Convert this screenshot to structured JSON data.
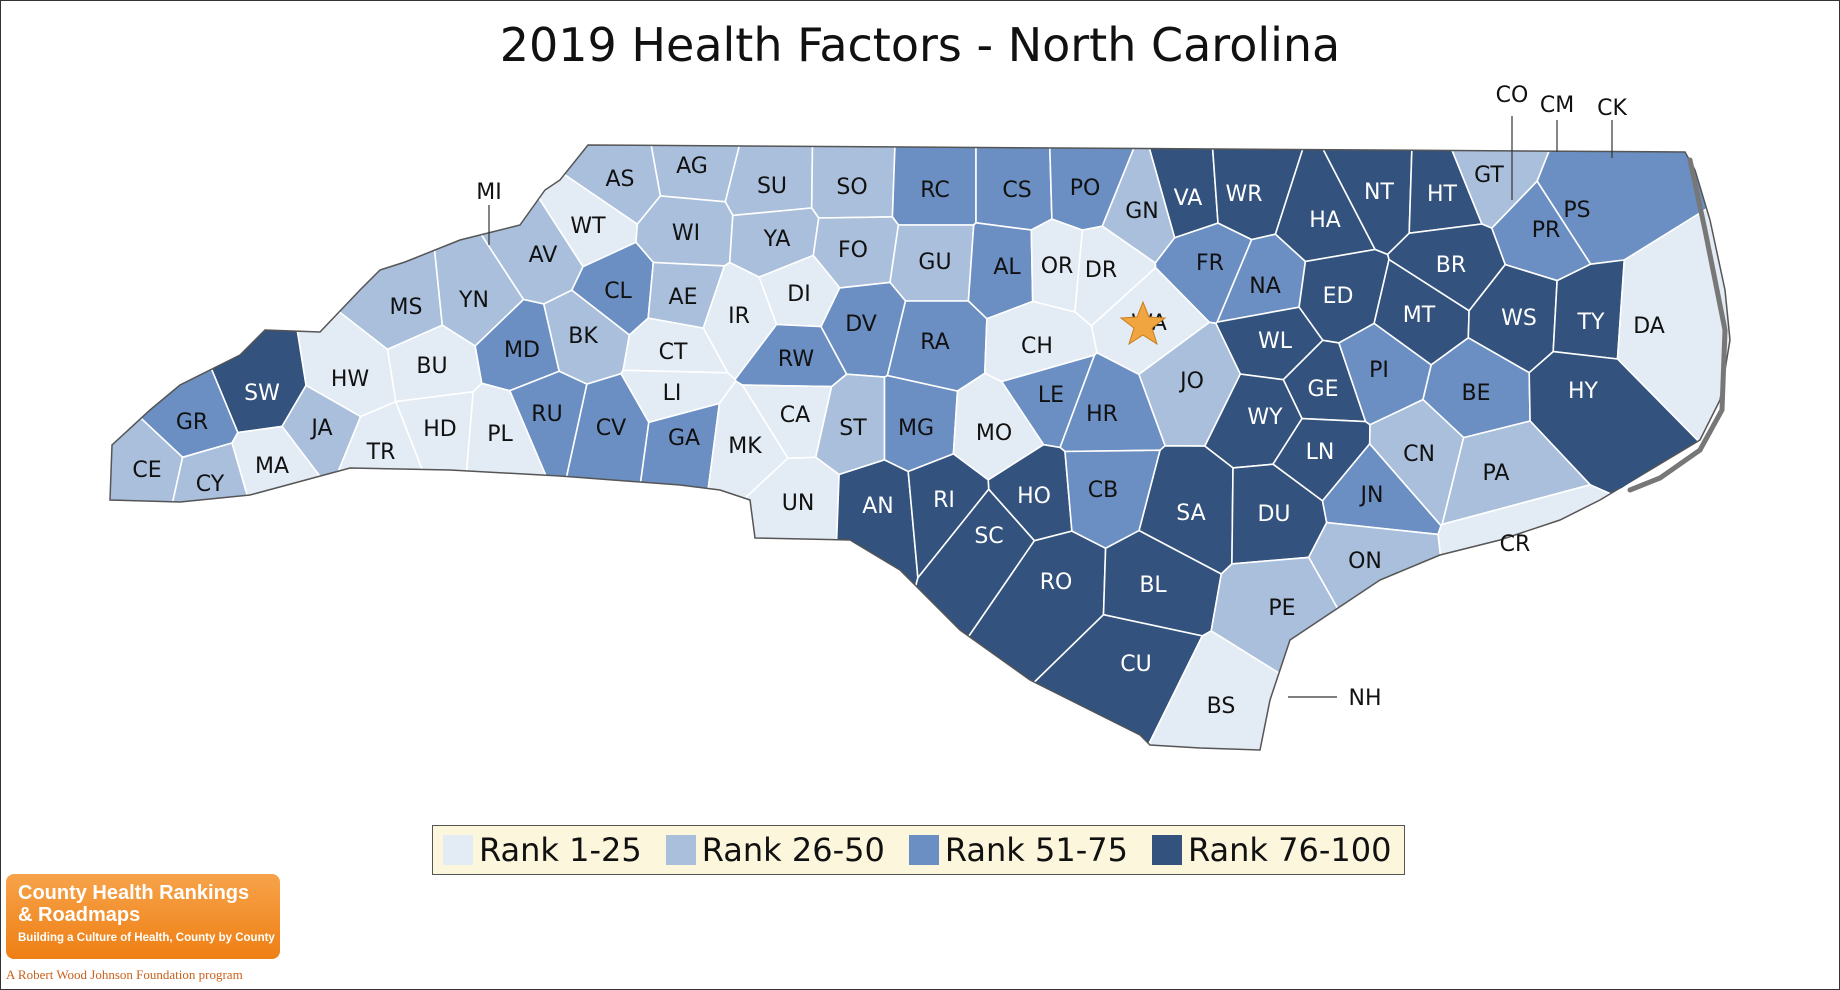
{
  "title": "2019 Health Factors - North Carolina",
  "colors": {
    "rank_1_25": "#e3ebf5",
    "rank_26_50": "#a9bfdc",
    "rank_51_75": "#6b8fc2",
    "rank_76_100": "#33527d"
  },
  "legend": [
    {
      "label": "Rank 1-25",
      "class": "q1"
    },
    {
      "label": "Rank 26-50",
      "class": "q2"
    },
    {
      "label": "Rank 51-75",
      "class": "q3"
    },
    {
      "label": "Rank 76-100",
      "class": "q4"
    }
  ],
  "marker": "star-icon",
  "counties": [
    {
      "code": "AS",
      "class": "q2"
    },
    {
      "code": "AG",
      "class": "q2"
    },
    {
      "code": "SU",
      "class": "q2"
    },
    {
      "code": "SO",
      "class": "q2"
    },
    {
      "code": "RC",
      "class": "q3"
    },
    {
      "code": "CS",
      "class": "q3"
    },
    {
      "code": "PO",
      "class": "q3"
    },
    {
      "code": "GN",
      "class": "q2"
    },
    {
      "code": "VA",
      "class": "q4"
    },
    {
      "code": "WR",
      "class": "q4"
    },
    {
      "code": "HA",
      "class": "q4"
    },
    {
      "code": "NT",
      "class": "q4"
    },
    {
      "code": "HT",
      "class": "q4"
    },
    {
      "code": "GT",
      "class": "q2"
    },
    {
      "code": "PS",
      "class": "q3"
    },
    {
      "code": "PR",
      "class": "q3"
    },
    {
      "code": "WT",
      "class": "q1"
    },
    {
      "code": "WI",
      "class": "q2"
    },
    {
      "code": "YA",
      "class": "q2"
    },
    {
      "code": "FO",
      "class": "q2"
    },
    {
      "code": "GU",
      "class": "q2"
    },
    {
      "code": "AL",
      "class": "q3"
    },
    {
      "code": "OR",
      "class": "q1"
    },
    {
      "code": "DR",
      "class": "q1"
    },
    {
      "code": "FR",
      "class": "q3"
    },
    {
      "code": "BR",
      "class": "q4"
    },
    {
      "code": "AV",
      "class": "q2"
    },
    {
      "code": "CL",
      "class": "q3"
    },
    {
      "code": "AE",
      "class": "q2"
    },
    {
      "code": "DI",
      "class": "q1"
    },
    {
      "code": "DV",
      "class": "q3"
    },
    {
      "code": "RA",
      "class": "q3"
    },
    {
      "code": "WA",
      "class": "q1"
    },
    {
      "code": "NA",
      "class": "q3"
    },
    {
      "code": "ED",
      "class": "q4"
    },
    {
      "code": "MT",
      "class": "q4"
    },
    {
      "code": "WS",
      "class": "q4"
    },
    {
      "code": "TY",
      "class": "q4"
    },
    {
      "code": "DA",
      "class": "q1"
    },
    {
      "code": "MS",
      "class": "q2"
    },
    {
      "code": "YN",
      "class": "q2"
    },
    {
      "code": "IR",
      "class": "q1"
    },
    {
      "code": "MD",
      "class": "q3"
    },
    {
      "code": "BK",
      "class": "q2"
    },
    {
      "code": "CT",
      "class": "q1"
    },
    {
      "code": "RW",
      "class": "q3"
    },
    {
      "code": "CH",
      "class": "q1"
    },
    {
      "code": "WL",
      "class": "q4"
    },
    {
      "code": "SW",
      "class": "q4"
    },
    {
      "code": "HW",
      "class": "q1"
    },
    {
      "code": "BU",
      "class": "q1"
    },
    {
      "code": "LI",
      "class": "q1"
    },
    {
      "code": "JO",
      "class": "q2"
    },
    {
      "code": "GE",
      "class": "q4"
    },
    {
      "code": "PI",
      "class": "q3"
    },
    {
      "code": "BE",
      "class": "q3"
    },
    {
      "code": "HY",
      "class": "q4"
    },
    {
      "code": "LE",
      "class": "q3"
    },
    {
      "code": "GR",
      "class": "q3"
    },
    {
      "code": "JA",
      "class": "q2"
    },
    {
      "code": "RU",
      "class": "q3"
    },
    {
      "code": "CV",
      "class": "q3"
    },
    {
      "code": "CA",
      "class": "q1"
    },
    {
      "code": "HR",
      "class": "q3"
    },
    {
      "code": "WY",
      "class": "q4"
    },
    {
      "code": "HD",
      "class": "q1"
    },
    {
      "code": "TR",
      "class": "q1"
    },
    {
      "code": "PL",
      "class": "q1"
    },
    {
      "code": "GA",
      "class": "q3"
    },
    {
      "code": "ST",
      "class": "q2"
    },
    {
      "code": "MG",
      "class": "q3"
    },
    {
      "code": "MO",
      "class": "q1"
    },
    {
      "code": "MK",
      "class": "q1"
    },
    {
      "code": "LN",
      "class": "q4"
    },
    {
      "code": "CN",
      "class": "q2"
    },
    {
      "code": "CE",
      "class": "q2"
    },
    {
      "code": "MA",
      "class": "q1"
    },
    {
      "code": "CY",
      "class": "q2"
    },
    {
      "code": "PA",
      "class": "q2"
    },
    {
      "code": "HO",
      "class": "q4"
    },
    {
      "code": "CB",
      "class": "q3"
    },
    {
      "code": "SA",
      "class": "q4"
    },
    {
      "code": "DU",
      "class": "q4"
    },
    {
      "code": "UN",
      "class": "q1"
    },
    {
      "code": "AN",
      "class": "q4"
    },
    {
      "code": "RI",
      "class": "q4"
    },
    {
      "code": "JN",
      "class": "q3"
    },
    {
      "code": "SC",
      "class": "q4"
    },
    {
      "code": "ON",
      "class": "q2"
    },
    {
      "code": "CR",
      "class": "q1"
    },
    {
      "code": "RO",
      "class": "q4"
    },
    {
      "code": "BL",
      "class": "q4"
    },
    {
      "code": "PE",
      "class": "q2"
    },
    {
      "code": "CU",
      "class": "q4"
    },
    {
      "code": "BS",
      "class": "q1"
    },
    {
      "code": "NH",
      "class": "q1"
    },
    {
      "code": "MI",
      "class": "q2"
    },
    {
      "code": "CO",
      "class": "q2"
    },
    {
      "code": "CM",
      "class": "q1"
    },
    {
      "code": "CK",
      "class": "q1"
    }
  ],
  "logo": {
    "name": "County Health Rankings & Roadmaps",
    "tagline": "Building a Culture of Health, County by County",
    "foundation": "A Robert Wood Johnson Foundation program"
  }
}
